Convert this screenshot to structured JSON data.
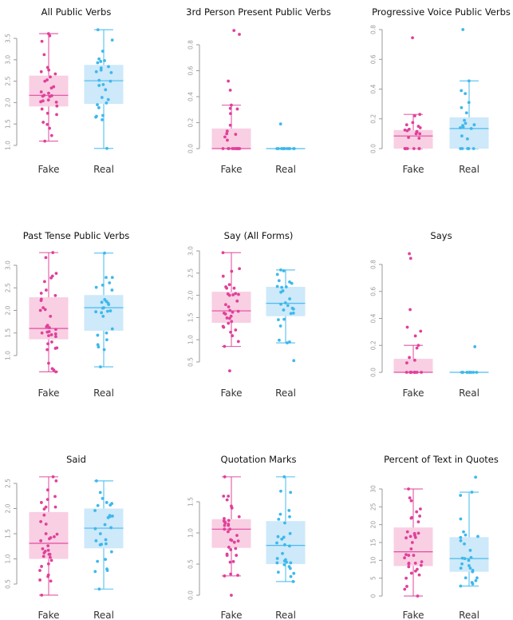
{
  "colors": {
    "fake": "#E0409A",
    "fake_fill": "#F9CFE3",
    "real": "#3DB8EC",
    "real_fill": "#CDE9FA",
    "axis": "#9a9a9a"
  },
  "chart_data": [
    {
      "type": "box",
      "title": "All Public Verbs",
      "categories": [
        "Fake",
        "Real"
      ],
      "ylim": [
        0.9,
        3.75
      ],
      "yticks": [
        1.0,
        1.5,
        2.0,
        2.5,
        3.0,
        3.5
      ],
      "ytick_labels": [
        "1.0",
        "1.5",
        "2.0",
        "2.5",
        "3.0",
        "3.5"
      ],
      "series": [
        {
          "name": "Fake",
          "q1": 1.91,
          "median": 2.17,
          "q3": 2.63,
          "whisker_low": 1.1,
          "whisker_high": 3.61,
          "points": [
            3.61,
            3.56,
            3.43,
            3.12,
            2.82,
            2.76,
            2.72,
            2.67,
            2.6,
            2.53,
            2.5,
            2.37,
            2.34,
            2.25,
            2.22,
            2.17,
            2.16,
            2.15,
            2.14,
            2.06,
            2.04,
            2.02,
            2.01,
            1.92,
            1.85,
            1.75,
            1.72,
            1.54,
            1.49,
            1.4,
            1.23,
            1.1
          ]
        },
        {
          "name": "Real",
          "q1": 1.97,
          "median": 2.51,
          "q3": 2.88,
          "whisker_low": 0.93,
          "whisker_high": 3.7,
          "points": [
            3.7,
            3.46,
            3.2,
            3.02,
            2.98,
            2.96,
            2.93,
            2.84,
            2.81,
            2.76,
            2.72,
            2.7,
            2.52,
            2.5,
            2.42,
            2.4,
            2.3,
            2.12,
            2.07,
            1.99,
            1.95,
            1.88,
            1.7,
            1.68,
            1.66,
            1.6,
            0.93
          ]
        }
      ]
    },
    {
      "type": "box",
      "title": "3rd Person Present Public Verbs",
      "categories": [
        "Fake",
        "Real"
      ],
      "ylim": [
        0,
        0.92
      ],
      "yticks": [
        0.0,
        0.2,
        0.4,
        0.6,
        0.8
      ],
      "ytick_labels": [
        "0.0",
        "0.2",
        "0.4",
        "0.6",
        "0.8"
      ],
      "series": [
        {
          "name": "Fake",
          "q1": 0.0,
          "median": 0.0,
          "q3": 0.155,
          "whisker_low": 0.0,
          "whisker_high": 0.335,
          "points": [
            0.91,
            0.88,
            0.52,
            0.45,
            0.335,
            0.31,
            0.305,
            0.27,
            0.18,
            0.135,
            0.115,
            0.11,
            0.09,
            0.065,
            0,
            0,
            0,
            0,
            0,
            0,
            0,
            0,
            0,
            0,
            0
          ]
        },
        {
          "name": "Real",
          "q1": 0.0,
          "median": 0.0,
          "q3": 0.0,
          "whisker_low": 0.0,
          "whisker_high": 0.0,
          "points": [
            0.19,
            0,
            0,
            0,
            0,
            0,
            0,
            0,
            0,
            0,
            0,
            0
          ]
        }
      ]
    },
    {
      "type": "box",
      "title": "Progressive Voice Public Verbs",
      "categories": [
        "Fake",
        "Real"
      ],
      "ylim": [
        0,
        0.8
      ],
      "yticks": [
        0.0,
        0.2,
        0.4,
        0.6,
        0.8
      ],
      "ytick_labels": [
        "0.0",
        "0.2",
        "0.4",
        "0.6",
        "0.8"
      ],
      "series": [
        {
          "name": "Fake",
          "q1": 0.0,
          "median": 0.085,
          "q3": 0.125,
          "whisker_low": 0.0,
          "whisker_high": 0.23,
          "points": [
            0.745,
            0.23,
            0.22,
            0.175,
            0.16,
            0.15,
            0.14,
            0.13,
            0.125,
            0.12,
            0.115,
            0.11,
            0.1,
            0.1,
            0.075,
            0.07,
            0,
            0,
            0,
            0,
            0,
            0,
            0
          ]
        },
        {
          "name": "Real",
          "q1": 0.0,
          "median": 0.135,
          "q3": 0.21,
          "whisker_low": 0.0,
          "whisker_high": 0.455,
          "points": [
            0.8,
            0.455,
            0.39,
            0.37,
            0.31,
            0.275,
            0.24,
            0.19,
            0.17,
            0.16,
            0.155,
            0.145,
            0.14,
            0.135,
            0.085,
            0.065,
            0,
            0,
            0,
            0,
            0,
            0
          ]
        }
      ]
    },
    {
      "type": "box",
      "title": "Past Tense Public Verbs",
      "categories": [
        "Fake",
        "Real"
      ],
      "ylim": [
        0.6,
        3.3
      ],
      "yticks": [
        1.0,
        1.5,
        2.0,
        2.5,
        3.0
      ],
      "ytick_labels": [
        "1.0",
        "1.5",
        "2.0",
        "2.5",
        "3.0"
      ],
      "series": [
        {
          "name": "Fake",
          "q1": 1.36,
          "median": 1.6,
          "q3": 2.29,
          "whisker_low": 0.64,
          "whisker_high": 3.28,
          "points": [
            3.28,
            3.17,
            2.82,
            2.76,
            2.72,
            2.64,
            2.45,
            2.38,
            2.33,
            2.25,
            2.22,
            2.06,
            2.02,
            2.0,
            1.87,
            1.67,
            1.64,
            1.62,
            1.58,
            1.53,
            1.52,
            1.5,
            1.48,
            1.46,
            1.44,
            1.42,
            1.3,
            1.26,
            1.17,
            1.16,
            1.13,
            0.83,
            0.71,
            0.68,
            0.64
          ]
        },
        {
          "name": "Real",
          "q1": 1.55,
          "median": 2.06,
          "q3": 2.34,
          "whisker_low": 0.75,
          "whisker_high": 3.27,
          "points": [
            3.27,
            2.73,
            2.73,
            2.61,
            2.56,
            2.51,
            2.45,
            2.24,
            2.2,
            2.18,
            2.16,
            2.13,
            2.06,
            2.05,
            1.99,
            1.98,
            1.97,
            1.95,
            1.87,
            1.59,
            1.5,
            1.45,
            1.35,
            1.24,
            1.19,
            1.13,
            0.75
          ]
        }
      ]
    },
    {
      "type": "box",
      "title": "Say (All Forms)",
      "categories": [
        "Fake",
        "Real"
      ],
      "ylim": [
        0.25,
        3.0
      ],
      "yticks": [
        0.5,
        1.0,
        1.5,
        2.0,
        2.5,
        3.0
      ],
      "ytick_labels": [
        "0.5",
        "1.0",
        "1.5",
        "2.0",
        "2.5",
        "3.0"
      ],
      "series": [
        {
          "name": "Fake",
          "q1": 1.38,
          "median": 1.65,
          "q3": 2.08,
          "whisker_low": 0.85,
          "whisker_high": 2.96,
          "points": [
            2.96,
            2.6,
            2.54,
            2.43,
            2.24,
            2.19,
            2.16,
            2.16,
            2.04,
            2.03,
            2.02,
            2.01,
            2.0,
            1.87,
            1.79,
            1.74,
            1.66,
            1.64,
            1.62,
            1.6,
            1.58,
            1.53,
            1.49,
            1.48,
            1.41,
            1.37,
            1.3,
            1.28,
            1.22,
            1.17,
            1.09,
            0.96,
            0.85,
            0.3
          ]
        },
        {
          "name": "Real",
          "q1": 1.53,
          "median": 1.82,
          "q3": 2.19,
          "whisker_low": 0.93,
          "whisker_high": 2.57,
          "points": [
            2.57,
            2.55,
            2.47,
            2.33,
            2.3,
            2.27,
            2.2,
            2.19,
            2.18,
            2.1,
            2.07,
            1.92,
            1.83,
            1.8,
            1.77,
            1.71,
            1.69,
            1.67,
            1.6,
            1.59,
            1.46,
            1.45,
            1.31,
            0.99,
            0.95,
            0.93,
            0.53
          ]
        }
      ]
    },
    {
      "type": "box",
      "title": "Says",
      "categories": [
        "Fake",
        "Real"
      ],
      "ylim": [
        0,
        0.88
      ],
      "yticks": [
        0.0,
        0.2,
        0.4,
        0.6,
        0.8
      ],
      "ytick_labels": [
        "0.0",
        "0.2",
        "0.4",
        "0.6",
        "0.8"
      ],
      "series": [
        {
          "name": "Fake",
          "q1": 0.0,
          "median": 0.0,
          "q3": 0.1,
          "whisker_low": 0.0,
          "whisker_high": 0.2,
          "points": [
            0.88,
            0.845,
            0.465,
            0.335,
            0.305,
            0.27,
            0.2,
            0.18,
            0.11,
            0.09,
            0.07,
            0,
            0,
            0,
            0,
            0,
            0,
            0,
            0,
            0
          ]
        },
        {
          "name": "Real",
          "q1": 0.0,
          "median": 0.0,
          "q3": 0.0,
          "whisker_low": 0.0,
          "whisker_high": 0.0,
          "points": [
            0.19,
            0,
            0,
            0,
            0,
            0,
            0,
            0,
            0,
            0
          ]
        }
      ]
    },
    {
      "type": "box",
      "title": "Said",
      "categories": [
        "Fake",
        "Real"
      ],
      "ylim": [
        0.25,
        2.65
      ],
      "yticks": [
        0.5,
        1.0,
        1.5,
        2.0,
        2.5
      ],
      "ytick_labels": [
        "0.5",
        "1.0",
        "1.5",
        "2.0",
        "2.5"
      ],
      "series": [
        {
          "name": "Fake",
          "q1": 1.0,
          "median": 1.31,
          "q3": 1.93,
          "whisker_low": 0.28,
          "whisker_high": 2.63,
          "points": [
            2.63,
            2.55,
            2.37,
            2.24,
            2.18,
            2.12,
            2.03,
            2.03,
            1.99,
            1.87,
            1.74,
            1.69,
            1.5,
            1.49,
            1.44,
            1.42,
            1.4,
            1.36,
            1.26,
            1.2,
            1.17,
            1.15,
            1.12,
            1.09,
            1.09,
            1.05,
            1.03,
            0.97,
            0.9,
            0.85,
            0.77,
            0.68,
            0.65,
            0.58,
            0.56,
            0.28
          ]
        },
        {
          "name": "Real",
          "q1": 1.21,
          "median": 1.61,
          "q3": 2.0,
          "whisker_low": 0.4,
          "whisker_high": 2.55,
          "points": [
            2.55,
            2.32,
            2.2,
            2.12,
            2.1,
            2.07,
            2.06,
            1.96,
            1.86,
            1.85,
            1.84,
            1.82,
            1.68,
            1.62,
            1.6,
            1.5,
            1.38,
            1.36,
            1.3,
            1.29,
            1.28,
            1.14,
            0.99,
            0.95,
            0.8,
            0.77,
            0.75,
            0.4
          ]
        }
      ]
    },
    {
      "type": "box",
      "title": "Quotation Marks",
      "categories": [
        "Fake",
        "Real"
      ],
      "ylim": [
        0,
        1.9
      ],
      "yticks": [
        0.0,
        0.5,
        1.0,
        1.5
      ],
      "ytick_labels": [
        "0.0",
        "0.5",
        "1.0",
        "1.5"
      ],
      "series": [
        {
          "name": "Fake",
          "q1": 0.76,
          "median": 1.06,
          "q3": 1.22,
          "whisker_low": 0.31,
          "whisker_high": 1.9,
          "points": [
            1.9,
            1.59,
            1.59,
            1.53,
            1.43,
            1.4,
            1.4,
            1.26,
            1.23,
            1.2,
            1.19,
            1.17,
            1.16,
            1.14,
            1.12,
            1.12,
            1.06,
            1.06,
            1.02,
            0.96,
            0.89,
            0.88,
            0.87,
            0.85,
            0.77,
            0.75,
            0.73,
            0.66,
            0.64,
            0.64,
            0.54,
            0.53,
            0.34,
            0.32,
            0.31,
            0.0
          ]
        },
        {
          "name": "Real",
          "q1": 0.5,
          "median": 0.8,
          "q3": 1.19,
          "whisker_low": 0.22,
          "whisker_high": 1.9,
          "points": [
            1.9,
            1.67,
            1.65,
            1.36,
            1.3,
            1.26,
            1.22,
            1.16,
            0.99,
            0.94,
            0.93,
            0.9,
            0.84,
            0.81,
            0.79,
            0.67,
            0.59,
            0.57,
            0.55,
            0.53,
            0.52,
            0.52,
            0.49,
            0.46,
            0.43,
            0.37,
            0.35,
            0.3,
            0.22
          ]
        }
      ]
    },
    {
      "type": "box",
      "title": "Percent of Text in Quotes",
      "categories": [
        "Fake",
        "Real"
      ],
      "ylim": [
        0,
        33
      ],
      "yticks": [
        0,
        5,
        10,
        15,
        20,
        25,
        30
      ],
      "ytick_labels": [
        "0",
        "5",
        "10",
        "15",
        "20",
        "25",
        "30"
      ],
      "series": [
        {
          "name": "Fake",
          "q1": 8.4,
          "median": 12.4,
          "q3": 19.2,
          "whisker_low": 0.0,
          "whisker_high": 30.0,
          "points": [
            30,
            27.5,
            26.7,
            24.4,
            23.6,
            22.4,
            22.0,
            21.8,
            20.8,
            18.0,
            17.6,
            17.5,
            17.0,
            16.7,
            16.4,
            16.3,
            15.0,
            13.2,
            11.6,
            11.4,
            11.4,
            10.7,
            9.6,
            9.2,
            9.2,
            9.0,
            8.6,
            8.2,
            7.5,
            7.0,
            6.4,
            5.9,
            5.0,
            2.7,
            1.9,
            0.0
          ]
        },
        {
          "name": "Real",
          "q1": 6.8,
          "median": 10.5,
          "q3": 16.5,
          "whisker_low": 2.8,
          "whisker_high": 29.1,
          "points": [
            33.3,
            29.1,
            28.2,
            21.6,
            18.0,
            17.1,
            16.7,
            16.4,
            15.5,
            14.6,
            12.8,
            10.8,
            10.6,
            10.5,
            10.0,
            9.0,
            8.5,
            7.8,
            7.8,
            7.2,
            6.8,
            5.1,
            5.1,
            4.3,
            3.8,
            3.4,
            2.8
          ]
        }
      ]
    }
  ]
}
